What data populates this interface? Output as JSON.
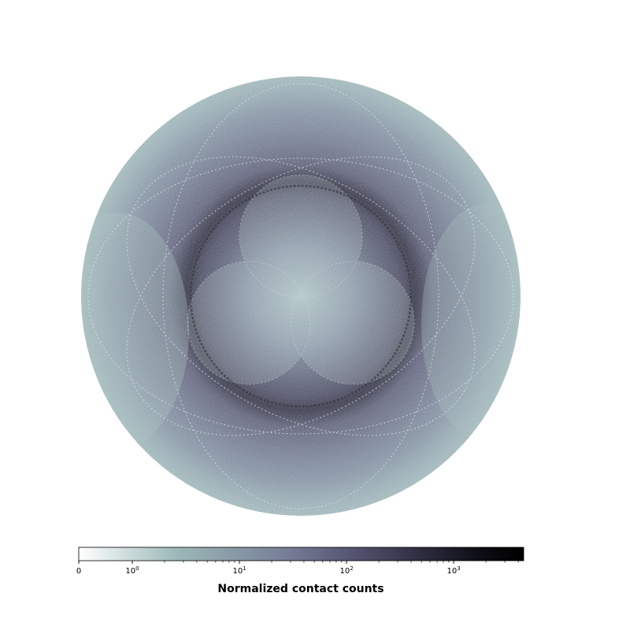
{
  "chart_data": {
    "type": "heatmap",
    "projection": "circular",
    "colormap": "bone_r",
    "scale": "symlog",
    "colorbar": {
      "label": "Normalized contact counts",
      "orientation": "horizontal",
      "placement": "bottom",
      "range": [
        0,
        4500
      ],
      "ticks": [
        {
          "value": 0,
          "base": "0",
          "exp": ""
        },
        {
          "value": 1,
          "base": "10",
          "exp": "0"
        },
        {
          "value": 10,
          "base": "10",
          "exp": "1"
        },
        {
          "value": 100,
          "base": "10",
          "exp": "2"
        },
        {
          "value": 1000,
          "base": "10",
          "exp": "3"
        }
      ]
    },
    "colors": {
      "low": "#ffffff",
      "mid": "#9cb8b8",
      "high": "#000000",
      "disk_mid": "#5c5b78",
      "disk_dark": "#2a2a3c"
    }
  }
}
